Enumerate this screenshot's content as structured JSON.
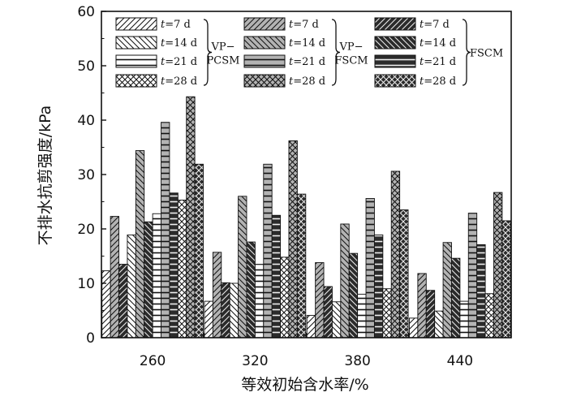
{
  "chart_data": {
    "type": "bar",
    "title": "",
    "xlabel": "等效初始含水率/%",
    "ylabel": "不排水抗剪强度/kPa",
    "ylim": [
      0,
      60
    ],
    "yticks": [
      0,
      10,
      20,
      30,
      40,
      50,
      60
    ],
    "categories": [
      "260",
      "320",
      "380",
      "440"
    ],
    "groups": [
      {
        "name_line1": "VP−",
        "name_line2": "PCSM",
        "fill": "#ffffff"
      },
      {
        "name_line1": "VP−",
        "name_line2": "FSCM",
        "fill": "#b3b3b3"
      },
      {
        "name_line1": "",
        "name_line2": "FSCM",
        "fill": "#2b2b2b"
      }
    ],
    "times": [
      {
        "label": "t=7 d",
        "t": "t",
        "rest": "=7 d",
        "pattern": "diag-up"
      },
      {
        "label": "t=14 d",
        "t": "t",
        "rest": "=14 d",
        "pattern": "diag-down"
      },
      {
        "label": "t=21 d",
        "t": "t",
        "rest": "=21 d",
        "pattern": "horizontal"
      },
      {
        "label": "t=28 d",
        "t": "t",
        "rest": "=28 d",
        "pattern": "cross"
      }
    ],
    "series": [
      {
        "name": "VP−PCSM t=7 d",
        "group": 0,
        "time": 0,
        "values": [
          12.3,
          6.7,
          4.1,
          3.6
        ]
      },
      {
        "name": "VP−FSCM t=7 d",
        "group": 1,
        "time": 0,
        "values": [
          22.3,
          15.7,
          13.8,
          11.8
        ]
      },
      {
        "name": "FSCM t=7 d",
        "group": 2,
        "time": 0,
        "values": [
          13.5,
          10.1,
          9.4,
          8.7
        ]
      },
      {
        "name": "VP−PCSM t=14 d",
        "group": 0,
        "time": 1,
        "values": [
          18.9,
          10.0,
          6.6,
          4.9
        ]
      },
      {
        "name": "VP−FSCM t=14 d",
        "group": 1,
        "time": 1,
        "values": [
          34.4,
          26.0,
          20.9,
          17.5
        ]
      },
      {
        "name": "FSCM t=14 d",
        "group": 2,
        "time": 1,
        "values": [
          21.3,
          17.6,
          15.5,
          14.6
        ]
      },
      {
        "name": "VP−PCSM t=21 d",
        "group": 0,
        "time": 2,
        "values": [
          22.8,
          13.5,
          8.0,
          6.7
        ]
      },
      {
        "name": "VP−FSCM t=21 d",
        "group": 1,
        "time": 2,
        "values": [
          39.6,
          31.9,
          25.6,
          22.9
        ]
      },
      {
        "name": "FSCM t=21 d",
        "group": 2,
        "time": 2,
        "values": [
          26.6,
          22.5,
          18.9,
          17.1
        ]
      },
      {
        "name": "VP−PCSM t=28 d",
        "group": 0,
        "time": 3,
        "values": [
          25.3,
          14.8,
          9.0,
          8.1
        ]
      },
      {
        "name": "VP−FSCM t=28 d",
        "group": 1,
        "time": 3,
        "values": [
          44.3,
          36.2,
          30.6,
          26.7
        ]
      },
      {
        "name": "FSCM t=28 d",
        "group": 2,
        "time": 3,
        "values": [
          31.9,
          26.4,
          23.5,
          21.5
        ]
      }
    ],
    "grid": false,
    "legend": "top"
  }
}
